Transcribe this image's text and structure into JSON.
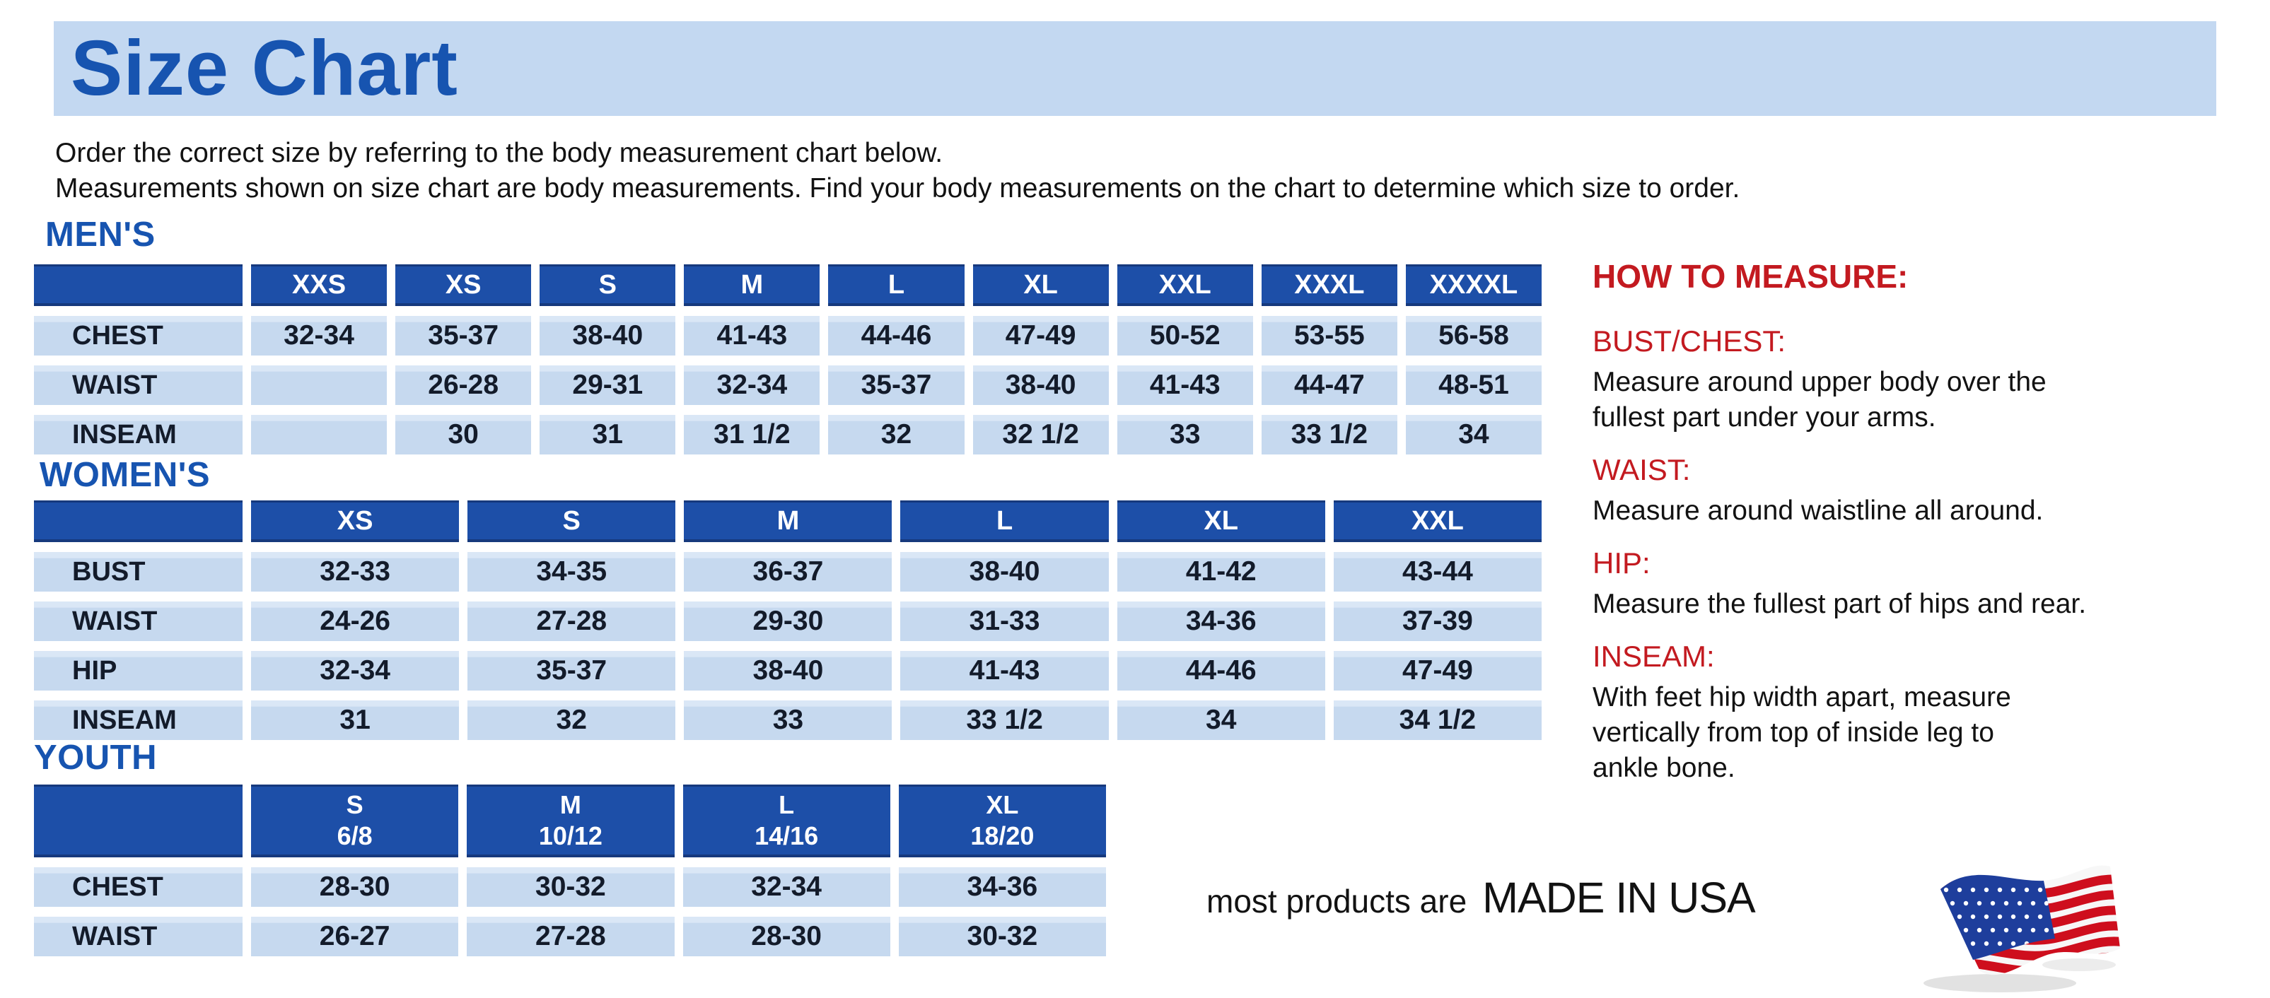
{
  "banner": {
    "title": "Size Chart"
  },
  "intro": {
    "line1": "Order the correct size by referring to the body measurement chart below.",
    "line2": "Measurements shown on size chart are body measurements.  Find your body measurements on the chart to determine which size to order."
  },
  "colors": {
    "banner_blue": "#c3d8f1",
    "heading_blue": "#1754b0",
    "header_blue": "#1d4fa8",
    "cell_blue": "#c6d9ef",
    "red": "#c31a20"
  },
  "tables": [
    {
      "id": "mens",
      "heading": "MEN'S",
      "col_headers": [
        "",
        "XXS",
        "XS",
        "S",
        "M",
        "L",
        "XL",
        "XXL",
        "XXXL",
        "XXXXL"
      ],
      "rows": [
        {
          "label": "CHEST",
          "values": [
            "32-34",
            "35-37",
            "38-40",
            "41-43",
            "44-46",
            "47-49",
            "50-52",
            "53-55",
            "56-58"
          ]
        },
        {
          "label": "WAIST",
          "values": [
            "",
            "26-28",
            "29-31",
            "32-34",
            "35-37",
            "38-40",
            "41-43",
            "44-47",
            "48-51"
          ]
        },
        {
          "label": "INSEAM",
          "values": [
            "",
            "30",
            "31",
            "31 1/2",
            "32",
            "32 1/2",
            "33",
            "33 1/2",
            "34"
          ]
        }
      ]
    },
    {
      "id": "womens",
      "heading": "WOMEN'S",
      "col_headers": [
        "",
        "XS",
        "S",
        "M",
        "L",
        "XL",
        "XXL"
      ],
      "rows": [
        {
          "label": "BUST",
          "values": [
            "32-33",
            "34-35",
            "36-37",
            "38-40",
            "41-42",
            "43-44"
          ]
        },
        {
          "label": "WAIST",
          "values": [
            "24-26",
            "27-28",
            "29-30",
            "31-33",
            "34-36",
            "37-39"
          ]
        },
        {
          "label": "HIP",
          "values": [
            "32-34",
            "35-37",
            "38-40",
            "41-43",
            "44-46",
            "47-49"
          ]
        },
        {
          "label": "INSEAM",
          "values": [
            "31",
            "32",
            "33",
            "33 1/2",
            "34",
            "34 1/2"
          ]
        }
      ]
    },
    {
      "id": "youth",
      "heading": "YOUTH",
      "col_headers": [
        "",
        "S\n6/8",
        "M\n10/12",
        "L\n14/16",
        "XL\n18/20"
      ],
      "rows": [
        {
          "label": "CHEST",
          "values": [
            "28-30",
            "30-32",
            "32-34",
            "34-36"
          ]
        },
        {
          "label": "WAIST",
          "values": [
            "26-27",
            "27-28",
            "28-30",
            "30-32"
          ]
        }
      ]
    }
  ],
  "how_to_measure": {
    "title": "HOW TO MEASURE:",
    "items": [
      {
        "label": "BUST/CHEST:",
        "text": "Measure around upper body over the\nfullest part under your arms."
      },
      {
        "label": "WAIST:",
        "text": "Measure around waistline all around."
      },
      {
        "label": "HIP:",
        "text": "Measure the fullest part of hips and rear."
      },
      {
        "label": "INSEAM:",
        "text": "With feet hip width apart, measure\nvertically from top of inside leg to\nankle bone."
      }
    ]
  },
  "footer": {
    "prefix": "most products are",
    "emphasis": "MADE IN USA",
    "flag_icon": "us-flag-icon"
  }
}
